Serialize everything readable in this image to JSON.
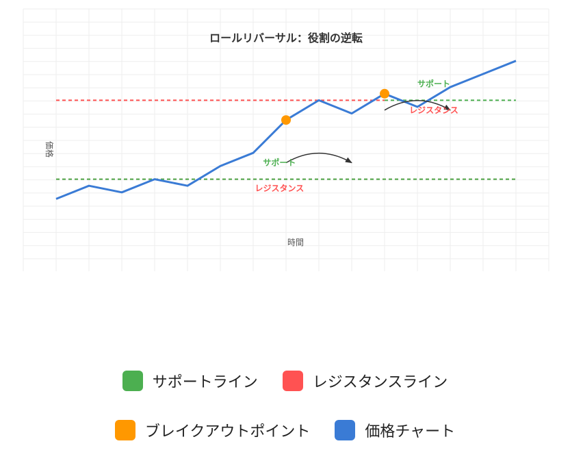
{
  "chart_data": {
    "type": "line",
    "title": "ロールリバーサル：役割の逆転",
    "xlabel": "時間",
    "ylabel": "価格",
    "xlim": [
      0,
      15
    ],
    "ylim": [
      -1,
      30
    ],
    "grid": true,
    "series": [
      {
        "values": [
          1,
          3,
          2,
          4,
          3,
          6,
          8,
          13,
          16,
          14,
          17,
          15,
          18,
          20,
          22
        ],
        "color": "#3a7bd5"
      }
    ],
    "breakout_points": [
      {
        "x": 7,
        "y": 13
      },
      {
        "x": 10,
        "y": 17
      }
    ],
    "support_lines": [
      {
        "y": 4,
        "x_start": 0,
        "x_end": 14,
        "label": "サポート",
        "label_x": 6.8,
        "label_y": 6.5
      },
      {
        "y": 16,
        "x_start": 10,
        "x_end": 14,
        "label": "サポート",
        "label_x": 11.5,
        "label_y": 18.5
      }
    ],
    "resistance_lines": [
      {
        "y": 4,
        "x_start": 0,
        "x_end": 14,
        "label": "レジスタンス",
        "label_x": 6.8,
        "label_y": 2.6
      },
      {
        "y": 16,
        "x_start": 0,
        "x_end": 10,
        "label": "レジスタンス",
        "label_x": 11.5,
        "label_y": 14.5
      }
    ],
    "arrows": [
      {
        "from": [
          7,
          6.5
        ],
        "to": [
          9,
          6.5
        ]
      },
      {
        "from": [
          10,
          14.5
        ],
        "to": [
          12,
          14.5
        ]
      }
    ],
    "colors": {
      "support": "#4caf50",
      "resistance": "#ff5252",
      "breakout": "#ff9800",
      "price": "#3a7bd5",
      "grid": "#eeeeee",
      "arrow": "#333333"
    }
  },
  "legend": [
    {
      "label": "サポートライン",
      "color": "#4caf50"
    },
    {
      "label": "レジスタンスライン",
      "color": "#ff5252"
    },
    {
      "label": "ブレイクアウトポイント",
      "color": "#ff9800"
    },
    {
      "label": "価格チャート",
      "color": "#3a7bd5"
    }
  ]
}
